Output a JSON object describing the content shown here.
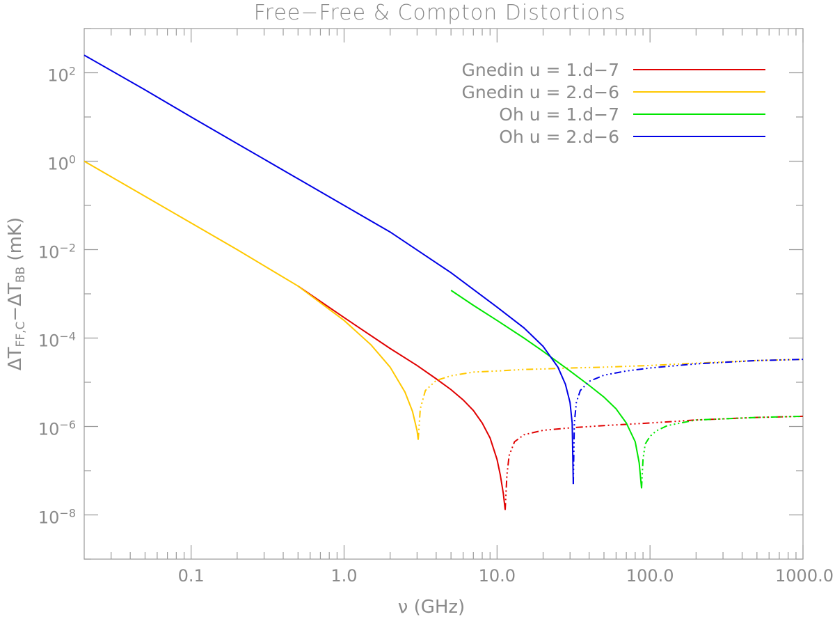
{
  "chart_data": {
    "type": "line",
    "title": "Free−Free & Compton Distortions",
    "xlabel": "ν (GHz)",
    "ylabel_parts": [
      "ΔT",
      "FF,C",
      "−ΔT",
      "BB",
      " (mK)"
    ],
    "xscale": "log",
    "yscale": "log",
    "xlim": [
      0.02,
      1000
    ],
    "ylim": [
      1e-09,
      1000
    ],
    "x_ticks": [
      {
        "value": 0.1,
        "label": "0.1"
      },
      {
        "value": 1,
        "label": "1.0"
      },
      {
        "value": 10,
        "label": "10.0"
      },
      {
        "value": 100,
        "label": "100.0"
      },
      {
        "value": 1000,
        "label": "1000.0"
      }
    ],
    "y_ticks": [
      {
        "value": 1e-08,
        "base": "10",
        "exp": "−8"
      },
      {
        "value": 1e-06,
        "base": "10",
        "exp": "−6"
      },
      {
        "value": 0.0001,
        "base": "10",
        "exp": "−4"
      },
      {
        "value": 0.01,
        "base": "10",
        "exp": "−2"
      },
      {
        "value": 1,
        "base": "10",
        "exp": "0"
      },
      {
        "value": 100,
        "base": "10",
        "exp": "2"
      }
    ],
    "legend_position": "top-right",
    "series": [
      {
        "name": "Gnedin u = 1.d−7",
        "color": "#e00000",
        "positive": {
          "x": [
            0.5,
            1,
            2,
            3,
            4,
            5,
            6,
            7,
            8,
            9,
            10,
            10.5,
            11,
            11.3
          ],
          "y": [
            0.0015,
            0.00029,
            5.8e-05,
            2.4e-05,
            1.2e-05,
            6.8e-06,
            4e-06,
            2.3e-06,
            1.2e-06,
            5.5e-07,
            1.8e-07,
            8e-08,
            3e-08,
            1.3e-08
          ]
        },
        "negative": {
          "x": [
            11.3,
            11.6,
            12,
            13,
            15,
            20,
            30,
            50,
            100,
            200,
            500,
            1000
          ],
          "y": [
            1.3e-08,
            8e-08,
            2.2e-07,
            4.5e-07,
            6.5e-07,
            8.2e-07,
            9.3e-07,
            1.05e-06,
            1.2e-06,
            1.4e-06,
            1.6e-06,
            1.7e-06
          ]
        }
      },
      {
        "name": "Gnedin u = 2.d−6",
        "color": "#ffc800",
        "positive": {
          "x": [
            0.02,
            0.05,
            0.1,
            0.2,
            0.5,
            1,
            1.5,
            2,
            2.5,
            2.8,
            3,
            3.05
          ],
          "y": [
            1.0,
            0.16,
            0.04,
            0.01,
            0.0015,
            0.00025,
            7e-05,
            2.2e-05,
            6e-06,
            2.2e-06,
            8e-07,
            5e-07
          ]
        },
        "negative": {
          "x": [
            3.05,
            3.15,
            3.4,
            4,
            5,
            7,
            10,
            15,
            20,
            30,
            50,
            100,
            200,
            500,
            1000
          ],
          "y": [
            5e-07,
            2.5e-06,
            6.5e-06,
            1.1e-05,
            1.4e-05,
            1.7e-05,
            1.8e-05,
            1.95e-05,
            2e-05,
            2.1e-05,
            2.2e-05,
            2.4e-05,
            2.7e-05,
            3.1e-05,
            3.3e-05
          ]
        }
      },
      {
        "name": "Oh u = 1.d−7",
        "color": "#00e600",
        "positive": {
          "x": [
            5,
            7,
            10,
            15,
            20,
            30,
            40,
            50,
            60,
            70,
            80,
            85,
            88
          ],
          "y": [
            0.0012,
            0.00055,
            0.00025,
            0.0001,
            5e-05,
            1.8e-05,
            8.5e-06,
            4.6e-06,
            2.5e-06,
            1.2e-06,
            4.5e-07,
            1.5e-07,
            4e-08
          ]
        },
        "negative": {
          "x": [
            88,
            90,
            93,
            100,
            110,
            130,
            200,
            500,
            1000
          ],
          "y": [
            4e-08,
            1.8e-07,
            4e-07,
            6e-07,
            8e-07,
            1.05e-06,
            1.4e-06,
            1.6e-06,
            1.7e-06
          ]
        }
      },
      {
        "name": "Oh u = 2.d−6",
        "color": "#0000e6",
        "positive": {
          "x": [
            0.02,
            0.05,
            0.1,
            0.2,
            0.5,
            1,
            2,
            5,
            10,
            15,
            20,
            25,
            28,
            30,
            31,
            31.5
          ],
          "y": [
            250,
            41,
            10,
            2.5,
            0.4,
            0.1,
            0.025,
            0.003,
            0.0005,
            0.00017,
            6.5e-05,
            2.2e-05,
            9e-06,
            3.5e-06,
            1.2e-06,
            5e-08
          ]
        },
        "negative": {
          "x": [
            31.5,
            32,
            33,
            35,
            40,
            50,
            70,
            100,
            200,
            500,
            1000
          ],
          "y": [
            5e-08,
            1.2e-06,
            3.5e-06,
            6.5e-06,
            1.05e-05,
            1.45e-05,
            1.8e-05,
            2.1e-05,
            2.6e-05,
            3.1e-05,
            3.3e-05
          ]
        }
      }
    ]
  }
}
